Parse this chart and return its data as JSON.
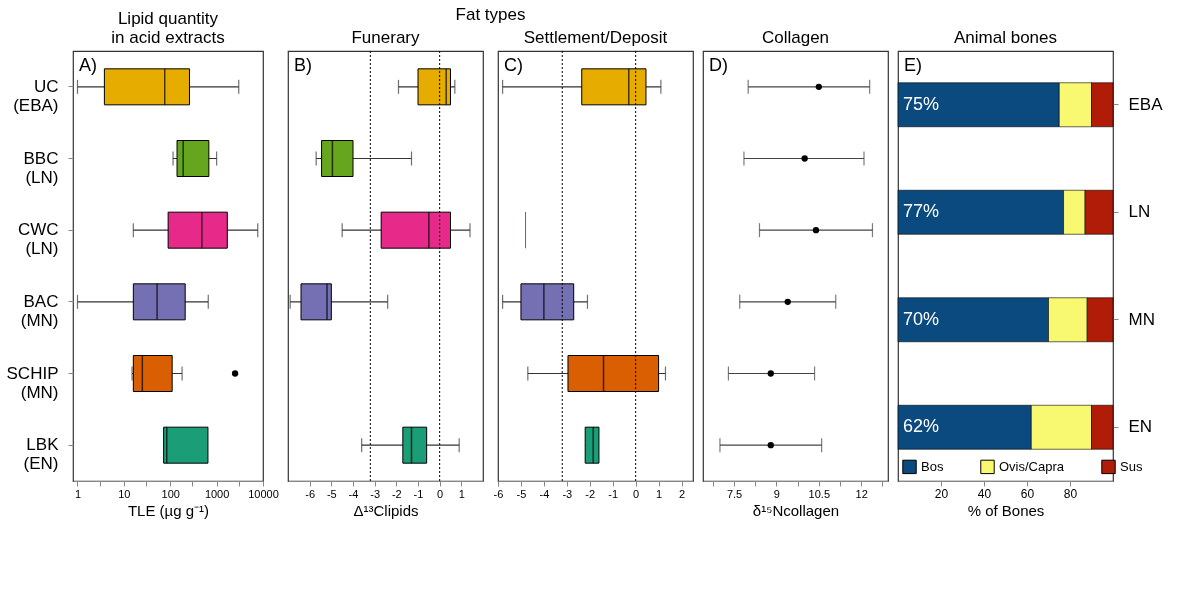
{
  "chart_data": [
    {
      "type": "box",
      "orientation": "horizontal",
      "title": "Lipid quantity\nin acid extracts",
      "xlabel": "TLE (µg g⁻¹)",
      "annotations": [
        "A)"
      ],
      "log": "x",
      "categories": [
        "UC\n(EBA)",
        "BBC\n(LN)",
        "CWC\n(LN)",
        "BAC\n(MN)",
        "SCHIP\n(MN)",
        "LBK\n(EN)"
      ],
      "colors": [
        "#e6ac00",
        "#66a61e",
        "#e7298a",
        "#7570b3",
        "#d95f02",
        "#1b9e77"
      ],
      "boxes": [
        {
          "low": 1,
          "q1": 3.8,
          "median": 76,
          "q3": 260,
          "high": 3000
        },
        {
          "low": 115,
          "q1": 140,
          "median": 190,
          "q3": 680,
          "high": 1000
        },
        {
          "low": 16,
          "q1": 90,
          "median": 480,
          "q3": 1700,
          "high": 7700
        },
        {
          "low": 1,
          "q1": 16,
          "median": 52,
          "q3": 210,
          "high": 660
        },
        {
          "low": 15,
          "q1": 16,
          "median": 25,
          "q3": 110,
          "high": 180,
          "outliers": [
            2500
          ]
        },
        {
          "low": 72,
          "q1": 72,
          "median": 84,
          "q3": 650,
          "high": 650
        }
      ],
      "xlim": [
        0.8,
        10000
      ],
      "xticks": [
        1,
        {
          "value": 3,
          "label": null
        },
        10,
        {
          "value": 30,
          "label": null
        },
        100,
        {
          "value": 300,
          "label": null
        },
        1000,
        {
          "value": 3000,
          "label": null
        },
        10000
      ]
    },
    {
      "type": "box",
      "orientation": "horizontal",
      "title": "Funerary",
      "xlabel": "Δ¹³Clipids",
      "annotations": [
        "B)",
        "Fat types"
      ],
      "tick_labels": "x",
      "colors": [
        "#e6ac00",
        "#66a61e",
        "#e7298a",
        "#7570b3",
        "#d95f02",
        "#1b9e77"
      ],
      "boxes": [
        {
          "low": -1.9,
          "q1": -1.0,
          "median": 0.3,
          "q3": 0.5,
          "high": 0.7
        },
        {
          "low": -5.7,
          "q1": -5.45,
          "median": -4.95,
          "q3": -4.0,
          "high": -1.3
        },
        {
          "low": -4.5,
          "q1": -2.7,
          "median": -0.5,
          "q3": 0.5,
          "high": 1.4
        },
        {
          "low": -6.9,
          "q1": -6.4,
          "median": -5.2,
          "q3": -5.0,
          "high": -2.4
        },
        null,
        {
          "low": -3.6,
          "q1": -1.7,
          "median": -1.3,
          "q3": -0.6,
          "high": 0.9
        }
      ],
      "xlim": [
        -7,
        2
      ],
      "xticks": [
        -6,
        -5,
        -4,
        -3,
        -2,
        -1,
        0,
        1
      ],
      "ref_lines": [
        {
          "axis": "x",
          "value": -3.2,
          "line_style": "dotted"
        },
        {
          "axis": "x",
          "value": 0,
          "line_style": "dotted"
        }
      ]
    },
    {
      "type": "box",
      "orientation": "horizontal",
      "title": "Settlement/Deposit",
      "tick_labels": "x",
      "annotations": [
        "C)"
      ],
      "colors": [
        "#e6ac00",
        "#66a61e",
        "#e7298a",
        "#7570b3",
        "#d95f02",
        "#1b9e77"
      ],
      "boxes": [
        {
          "low": -5.8,
          "q1": -2.35,
          "median": -0.3,
          "q3": 0.45,
          "high": 1.1
        },
        null,
        {
          "low": -4.8,
          "q1": -4.8,
          "median": -4.8,
          "q3": -4.8,
          "high": -4.8
        },
        {
          "low": -5.8,
          "q1": -5.0,
          "median": -4.0,
          "q3": -2.7,
          "high": -2.1
        },
        {
          "low": -4.7,
          "q1": -2.95,
          "median": -1.4,
          "q3": 1.0,
          "high": 1.3
        },
        {
          "low": -2.2,
          "q1": -2.2,
          "median": -1.85,
          "q3": -1.6,
          "high": -1.6
        }
      ],
      "xlim": [
        -6,
        2.5
      ],
      "xticks": [
        -6,
        -5,
        -4,
        -3,
        -2,
        -1,
        0,
        1,
        2
      ],
      "ref_lines": [
        {
          "axis": "x",
          "value": -3.2,
          "line_style": "dotted"
        },
        {
          "axis": "x",
          "value": 0,
          "line_style": "dotted"
        }
      ]
    },
    {
      "type": "scatter",
      "orientation": "horizontal",
      "title": "Collagen",
      "xlabel": "δ¹⁵Ncollagen",
      "annotations": [
        "D)"
      ],
      "tick_labels": "x",
      "marker": "circle",
      "color": "#000000",
      "values": [
        10.5,
        10.0,
        10.4,
        9.4,
        8.8,
        8.8
      ],
      "errors": [
        [
          8.0,
          12.3
        ],
        [
          7.85,
          12.1
        ],
        [
          8.4,
          12.4
        ],
        [
          7.7,
          11.1
        ],
        [
          7.3,
          10.35
        ],
        [
          7.0,
          10.6
        ]
      ],
      "xlim": [
        6.4,
        12.95
      ],
      "xticks": [
        {
          "value": 6.75,
          "label": null
        },
        7.5,
        {
          "value": 8.25,
          "label": null
        },
        9,
        {
          "value": 9.75,
          "label": null
        },
        10.5,
        {
          "value": 11.25,
          "label": null
        },
        12,
        {
          "value": 12.75,
          "label": null
        }
      ]
    },
    {
      "type": "bar",
      "orientation": "horizontal",
      "stacked": true,
      "title": "Animal bones",
      "xlabel": "% of Bones",
      "annotations": [
        "E)"
      ],
      "legend": "bottom",
      "categories": [
        "EBA",
        "LN",
        "MN",
        "EN"
      ],
      "series": [
        {
          "name": "Bos",
          "color": "#0b4a7e",
          "values": [
            75,
            77,
            70,
            62
          ],
          "value_labels": [
            "75%",
            "77%",
            "70%",
            "62%"
          ]
        },
        {
          "name": "Ovis/Capra",
          "color": "#f9f871",
          "values": [
            15,
            10,
            18,
            28
          ]
        },
        {
          "name": "Sus",
          "color": "#b01c07",
          "values": [
            10,
            13,
            12,
            10
          ]
        }
      ],
      "xlim": [
        0,
        100
      ],
      "xticks": [
        20,
        40,
        60,
        80
      ]
    }
  ]
}
